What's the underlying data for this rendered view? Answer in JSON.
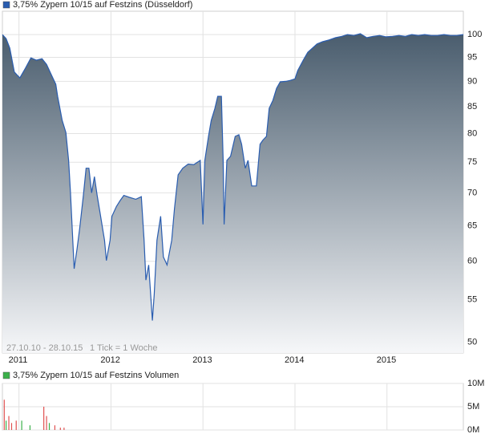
{
  "chart_data": [
    {
      "type": "area",
      "series": [
        {
          "name": "3,75% Zypern 10/15 auf Festzins (Düsseldorf)",
          "color": "#2a5db0",
          "fill_color": "#4a5d6e",
          "values": [
            100,
            99.1,
            97,
            91.9,
            90.7,
            92.7,
            94.9,
            94.4,
            94.7,
            93.5,
            91,
            89.4,
            87,
            82.4,
            80.2,
            75.3,
            70.1,
            59,
            61.6,
            64.6,
            69.6,
            74,
            74,
            70,
            72.6,
            69.6,
            67,
            62.9,
            60.1,
            62.9,
            66.4,
            67.9,
            68.8,
            69.6,
            69.3,
            69,
            69.4,
            63,
            57.5,
            59.5,
            52.5,
            55.7,
            62.9,
            66.4,
            60.6,
            59.5,
            62.9,
            67.5,
            72.9,
            74,
            74.7,
            74.6,
            75.3,
            65.2,
            75.3,
            79.5,
            82.4,
            84.7,
            87,
            87,
            75.3,
            65.2,
            75.3,
            76,
            79.5,
            79.8,
            78.1,
            74,
            75.3,
            71.1,
            71.1,
            78.1,
            78.8,
            79.5,
            84.7,
            86.2,
            88.6,
            89.9,
            90,
            90.2,
            90.5,
            92.2,
            94.4,
            96.1,
            97,
            97.9,
            98.4,
            98.8,
            99.3,
            99.6,
            100,
            99.8,
            100.2,
            99.3,
            99.6,
            99.8,
            99.5,
            99.6,
            99.8,
            99.6,
            100,
            99.8,
            100,
            99.8,
            99.8,
            100,
            99.8,
            99.8,
            100
          ]
        }
      ],
      "x": [
        2010.82,
        2010.86,
        2010.9,
        2010.95,
        2011.01,
        2011.07,
        2011.13,
        2011.19,
        2011.25,
        2011.3,
        2011.36,
        2011.4,
        2011.42,
        2011.47,
        2011.51,
        2011.54,
        2011.56,
        2011.6,
        2011.63,
        2011.66,
        2011.7,
        2011.73,
        2011.76,
        2011.79,
        2011.82,
        2011.85,
        2011.88,
        2011.93,
        2011.95,
        2011.99,
        2012.01,
        2012.06,
        2012.1,
        2012.14,
        2012.2,
        2012.27,
        2012.33,
        2012.36,
        2012.38,
        2012.41,
        2012.45,
        2012.47,
        2012.5,
        2012.54,
        2012.57,
        2012.61,
        2012.66,
        2012.69,
        2012.73,
        2012.78,
        2012.84,
        2012.9,
        2012.97,
        2013.0,
        2013.02,
        2013.06,
        2013.09,
        2013.13,
        2013.16,
        2013.2,
        2013.22,
        2013.23,
        2013.26,
        2013.3,
        2013.35,
        2013.39,
        2013.42,
        2013.46,
        2013.49,
        2013.53,
        2013.58,
        2013.62,
        2013.65,
        2013.69,
        2013.72,
        2013.76,
        2013.8,
        2013.84,
        2013.9,
        2013.95,
        2014.0,
        2014.03,
        2014.09,
        2014.14,
        2014.19,
        2014.24,
        2014.3,
        2014.37,
        2014.44,
        2014.51,
        2014.57,
        2014.64,
        2014.71,
        2014.78,
        2014.85,
        2014.92,
        2014.99,
        2015.06,
        2015.13,
        2015.2,
        2015.27,
        2015.34,
        2015.41,
        2015.48,
        2015.55,
        2015.62,
        2015.69,
        2015.76,
        2015.83
      ],
      "xlim": [
        2010.82,
        2015.83
      ],
      "xticks": [
        2011,
        2012,
        2013,
        2014,
        2015
      ],
      "ylim": [
        48.8,
        105.4
      ],
      "yticks": [
        50,
        55,
        60,
        65,
        70,
        75,
        80,
        85,
        90,
        95,
        100
      ],
      "log_scale": true,
      "grid": true,
      "annotations": [
        "27.10.10 - 28.10.15",
        "1 Tick = 1 Woche"
      ]
    },
    {
      "type": "bar",
      "series": [
        {
          "name": "3,75% Zypern 10/15 auf Festzins Volumen",
          "color": "#3bb04a",
          "values": [
            6500000,
            2000000,
            3000000,
            1500000,
            2000000,
            2000000,
            1000000,
            5000000,
            3000000,
            1500000,
            1000000,
            500000,
            500000
          ],
          "colors": [
            "#e05050",
            "#3bb04a",
            "#e05050",
            "#e05050",
            "#e05050",
            "#3bb04a",
            "#3bb04a",
            "#e05050",
            "#e05050",
            "#3bb04a",
            "#e05050",
            "#e05050",
            "#e05050"
          ]
        }
      ],
      "x": [
        2010.84,
        2010.86,
        2010.89,
        2010.92,
        2010.97,
        2011.03,
        2011.12,
        2011.27,
        2011.3,
        2011.33,
        2011.39,
        2011.45,
        2011.49
      ],
      "xlim": [
        2010.82,
        2015.83
      ],
      "xticks": [
        2011,
        2012,
        2013,
        2014,
        2015
      ],
      "ylim": [
        0,
        10000000
      ],
      "yticks": [
        {
          "value": 0,
          "label": "0M"
        },
        {
          "value": 5000000,
          "label": "5M"
        },
        {
          "value": 10000000,
          "label": "10M"
        }
      ],
      "grid": true
    }
  ]
}
